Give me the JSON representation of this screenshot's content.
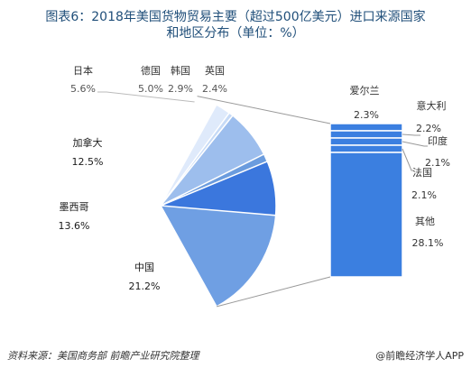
{
  "title": {
    "line1": "图表6：2018年美国货物贸易主要（超过500亿美元）进口来源国家",
    "line2": "和地区分布（单位：%）"
  },
  "chart_data": {
    "type": "pie",
    "subtype": "pie-of-bar",
    "slices": [
      {
        "name": "英国",
        "value": 2.4,
        "value_label": "2.4%",
        "color": "#1f4e9c"
      },
      {
        "name": "其他",
        "value": 36.8,
        "value_label": "36.8%",
        "color": "#6f9fe3"
      },
      {
        "name": "中国",
        "value": 21.2,
        "value_label": "21.2%",
        "color": "#3b77dd"
      },
      {
        "name": "墨西哥",
        "value": 13.6,
        "value_label": "13.6%",
        "color": "#6b9cde"
      },
      {
        "name": "加拿大",
        "value": 12.5,
        "value_label": "12.5%",
        "color": "#9dbeed"
      },
      {
        "name": "日本",
        "value": 5.6,
        "value_label": "5.6%",
        "color": "#c6daf6"
      },
      {
        "name": "德国",
        "value": 5.0,
        "value_label": "5.0%",
        "color": "#dfeafb"
      },
      {
        "name": "韩国",
        "value": 2.9,
        "value_label": "2.9%",
        "color": "#ffffff"
      }
    ],
    "bar_breakdown": [
      {
        "name": "爱尔兰",
        "value": 2.3,
        "value_label": "2.3%"
      },
      {
        "name": "意大利",
        "value": 2.2,
        "value_label": "2.2%"
      },
      {
        "name": "印度",
        "value": 2.1,
        "value_label": "2.1%"
      },
      {
        "name": "法国",
        "value": 2.1,
        "value_label": "2.1%"
      },
      {
        "name": "其他",
        "value": 28.1,
        "value_label": "28.1%"
      }
    ],
    "bar_color": "#3b7fe0"
  },
  "footer": {
    "source": "资料来源：美国商务部 前瞻产业研究院整理",
    "brand": "@前瞻经济学人APP"
  }
}
